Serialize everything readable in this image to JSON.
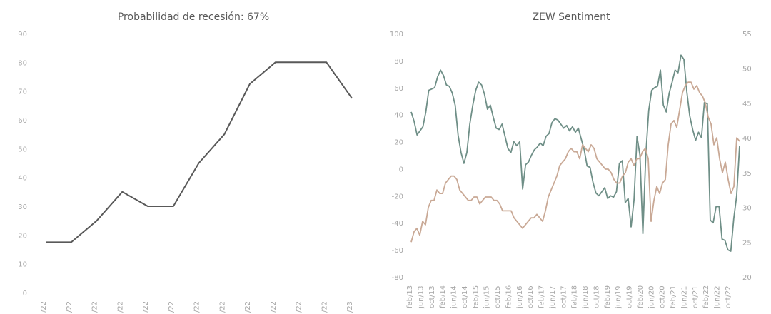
{
  "chart_data": [
    {
      "type": "line",
      "title": "Probabilidad de recesión: 67%",
      "categories": [
        "/22",
        "/22",
        "/22",
        "/22",
        "/22",
        "/22",
        "/22",
        "/22",
        "/22",
        "/22",
        "/22",
        "/22",
        "/23"
      ],
      "series": [
        {
          "values": [
            17.5,
            17.5,
            25,
            35,
            30,
            30,
            45,
            55,
            72.5,
            80,
            80,
            80,
            67.5
          ]
        }
      ],
      "ylim": [
        0,
        90
      ],
      "yticks": [
        0,
        10,
        20,
        30,
        40,
        50,
        60,
        70,
        80,
        90
      ],
      "grid": false,
      "colors": {
        "line": "#595959"
      }
    },
    {
      "type": "line",
      "title": "ZEW Sentiment",
      "x_labels": [
        "feb/13",
        "jun/13",
        "oct/13",
        "feb/14",
        "jun/14",
        "oct/14",
        "feb/15",
        "jun/15",
        "oct/15",
        "feb/16",
        "jun/16",
        "oct/16",
        "feb/17",
        "jun/17",
        "oct/17",
        "feb/18",
        "jun/18",
        "oct/18",
        "feb/19",
        "jun/19",
        "oct/19",
        "feb/20",
        "jun/20",
        "oct/20",
        "feb/21",
        "jun/21",
        "oct/21",
        "feb/22",
        "jun/22",
        "oct/22"
      ],
      "series": [
        {
          "axis": "left",
          "color": "#6f8f87",
          "values": [
            42,
            35,
            25,
            28,
            31,
            42,
            58,
            59,
            60,
            68,
            73,
            69,
            62,
            61,
            56,
            47,
            25,
            12,
            4,
            12,
            33,
            47,
            58,
            64,
            62,
            55,
            44,
            47,
            38,
            30,
            29,
            33,
            24,
            15,
            12,
            20,
            17,
            20,
            -15,
            3,
            5,
            10,
            14,
            16,
            19,
            17,
            24,
            26,
            34,
            37,
            36,
            33,
            30,
            32,
            28,
            31,
            27,
            30,
            22,
            14,
            2,
            1,
            -10,
            -18,
            -20,
            -17,
            -14,
            -22,
            -20,
            -21,
            -17,
            4,
            6,
            -25,
            -22,
            -43,
            -23,
            24,
            10,
            -48,
            10,
            43,
            58,
            60,
            61,
            73,
            47,
            42,
            56,
            64,
            73,
            71,
            84,
            81,
            57,
            39,
            29,
            21,
            27,
            23,
            49,
            48,
            -38,
            -40,
            -28,
            -28,
            -52,
            -53,
            -60,
            -61,
            -37,
            -20,
            17
          ]
        },
        {
          "axis": "right",
          "color": "#c9a996",
          "values": [
            25,
            26.5,
            27,
            26,
            28,
            27.5,
            30,
            31,
            31,
            32.5,
            32,
            32,
            33.5,
            34,
            34.5,
            34.5,
            34,
            32.5,
            32,
            31.5,
            31,
            31,
            31.5,
            31.5,
            30.5,
            31,
            31.5,
            31.5,
            31.5,
            31,
            31,
            30.5,
            29.5,
            29.5,
            29.5,
            29.5,
            28.5,
            28,
            27.5,
            27,
            27.5,
            28,
            28.5,
            28.5,
            29,
            28.5,
            28,
            29.5,
            31.5,
            32.5,
            33.5,
            34.5,
            36,
            36.5,
            37,
            38,
            38.5,
            38,
            38,
            37,
            39,
            38.5,
            38,
            39,
            38.5,
            37,
            36.5,
            36,
            35.5,
            35.5,
            35,
            34,
            33.5,
            33.5,
            34.5,
            35,
            36.5,
            37,
            36,
            37,
            37,
            38,
            38.5,
            37,
            28,
            31,
            33,
            32,
            33.5,
            34,
            39,
            42,
            42.5,
            41.5,
            44,
            46.5,
            47.5,
            48,
            48,
            47,
            47.5,
            46.5,
            46,
            45,
            43,
            42,
            39,
            40,
            37,
            35,
            36.5,
            34,
            32,
            33,
            40,
            39.5
          ]
        }
      ],
      "ylim_left": [
        -80,
        100
      ],
      "yticks_left": [
        -80,
        -60,
        -40,
        -20,
        0,
        20,
        40,
        60,
        80,
        100
      ],
      "ylim_right": [
        20,
        55
      ],
      "yticks_right": [
        20,
        25,
        30,
        35,
        40,
        45,
        50,
        55
      ],
      "grid": false
    }
  ]
}
